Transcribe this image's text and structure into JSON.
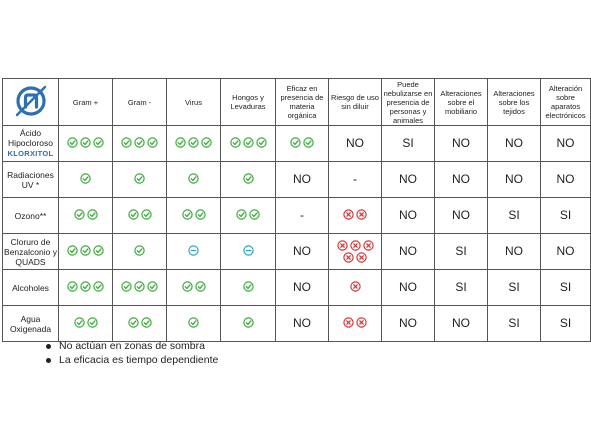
{
  "colors": {
    "ok": "#3daa3d",
    "partial": "#29a3c7",
    "risk": "#d93535",
    "brand": "#2e6fb3"
  },
  "table": {
    "columns": [
      "Gram +",
      "Gram -",
      "Virus",
      "Hongos y Levaduras",
      "Eficaz en presencia de materia orgánica",
      "Riesgo de uso sin diluir",
      "Puede nebulizarse en presencia de personas y animales",
      "Alteraciones sobre el mobiliario",
      "Alteraciones sobre los tejidos",
      "Alteración sobre aparatos electrónicos"
    ],
    "rows": [
      {
        "label": "Ácido Hipocloroso",
        "brand": "KLORXITOL",
        "cells": [
          {
            "icon": "check",
            "count": 3
          },
          {
            "icon": "check",
            "count": 3
          },
          {
            "icon": "check",
            "count": 3
          },
          {
            "icon": "check",
            "count": 3
          },
          {
            "icon": "check",
            "count": 2
          },
          {
            "text": "NO"
          },
          {
            "text": "SI"
          },
          {
            "text": "NO"
          },
          {
            "text": "NO"
          },
          {
            "text": "NO"
          }
        ]
      },
      {
        "label": "Radiaciones UV *",
        "cells": [
          {
            "icon": "check",
            "count": 1
          },
          {
            "icon": "check",
            "count": 1
          },
          {
            "icon": "check",
            "count": 1
          },
          {
            "icon": "check",
            "count": 1
          },
          {
            "text": "NO"
          },
          {
            "text": "-"
          },
          {
            "text": "NO"
          },
          {
            "text": "NO"
          },
          {
            "text": "NO"
          },
          {
            "text": "NO"
          }
        ]
      },
      {
        "label": "Ozono**",
        "cells": [
          {
            "icon": "check",
            "count": 2
          },
          {
            "icon": "check",
            "count": 2
          },
          {
            "icon": "check",
            "count": 2
          },
          {
            "icon": "check",
            "count": 2
          },
          {
            "text": "-"
          },
          {
            "icon": "cross",
            "count": 2
          },
          {
            "text": "NO"
          },
          {
            "text": "NO"
          },
          {
            "text": "SI"
          },
          {
            "text": "SI"
          }
        ]
      },
      {
        "label": "Cloruro de Benzalconio y QUADS",
        "cells": [
          {
            "icon": "check",
            "count": 3
          },
          {
            "icon": "check",
            "count": 1
          },
          {
            "icon": "minus",
            "count": 1
          },
          {
            "icon": "minus",
            "count": 1
          },
          {
            "text": "NO"
          },
          {
            "icon": "cross",
            "count": 5
          },
          {
            "text": "NO"
          },
          {
            "text": "SI"
          },
          {
            "text": "NO"
          },
          {
            "text": "NO"
          }
        ]
      },
      {
        "label": "Alcoholes",
        "cells": [
          {
            "icon": "check",
            "count": 3
          },
          {
            "icon": "check",
            "count": 3
          },
          {
            "icon": "check",
            "count": 2
          },
          {
            "icon": "check",
            "count": 1
          },
          {
            "text": "NO"
          },
          {
            "icon": "cross",
            "count": 1
          },
          {
            "text": "NO"
          },
          {
            "text": "SI"
          },
          {
            "text": "SI"
          },
          {
            "text": "SI"
          }
        ]
      },
      {
        "label": "Agua Oxigenada",
        "cells": [
          {
            "icon": "check",
            "count": 2
          },
          {
            "icon": "check",
            "count": 2
          },
          {
            "icon": "check",
            "count": 1
          },
          {
            "icon": "check",
            "count": 1
          },
          {
            "text": "NO"
          },
          {
            "icon": "cross",
            "count": 2
          },
          {
            "text": "NO"
          },
          {
            "text": "NO"
          },
          {
            "text": "SI"
          },
          {
            "text": "SI"
          }
        ]
      }
    ]
  },
  "notes": [
    "No actúan en zonas de sombra",
    "La eficacia es tiempo dependiente"
  ]
}
